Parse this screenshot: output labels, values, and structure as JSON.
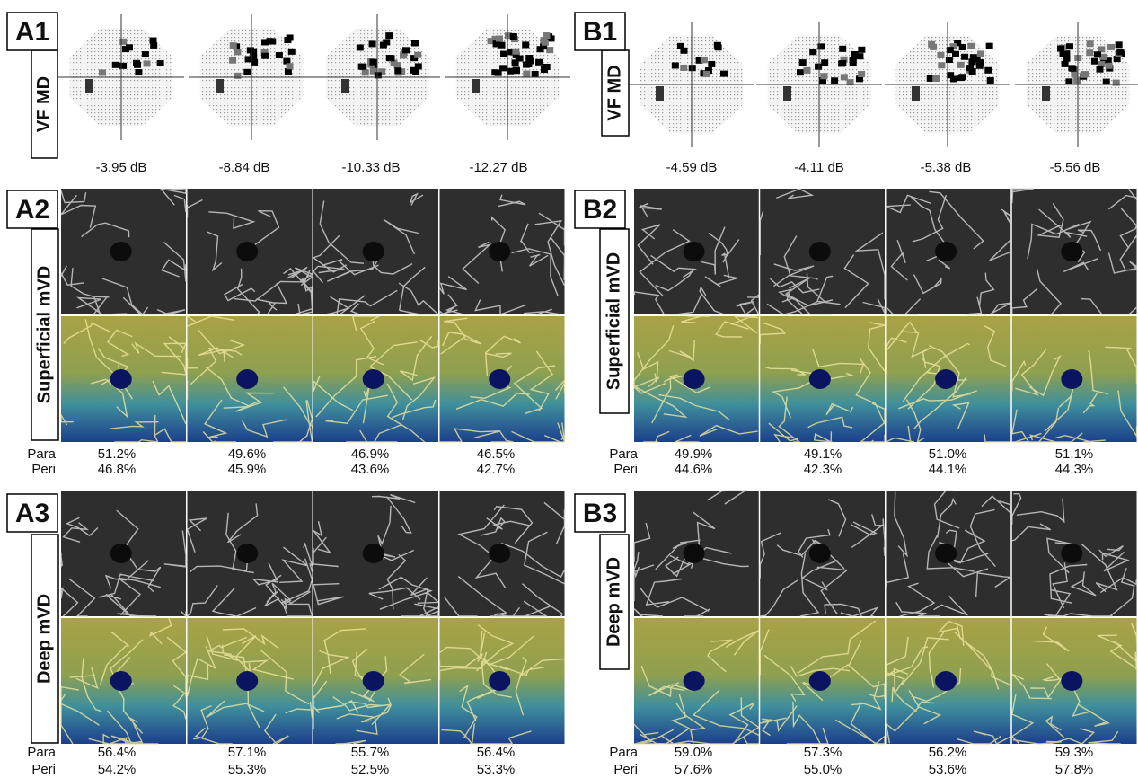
{
  "panels": [
    {
      "tag": "A1",
      "title": "VF MD",
      "values": [
        "-3.95 dB",
        "-8.84 dB",
        "-10.33 dB",
        "-12.27 dB"
      ]
    },
    {
      "tag": "A2",
      "title": "Superficial mVD",
      "rows": [
        {
          "name": "Para",
          "values": [
            "51.2%",
            "49.6%",
            "46.9%",
            "46.5%"
          ]
        },
        {
          "name": "Peri",
          "values": [
            "46.8%",
            "45.9%",
            "43.6%",
            "42.7%"
          ]
        }
      ]
    },
    {
      "tag": "A3",
      "title": "Deep mVD",
      "rows": [
        {
          "name": "Para",
          "values": [
            "56.4%",
            "57.1%",
            "55.7%",
            "56.4%"
          ]
        },
        {
          "name": "Peri",
          "values": [
            "54.2%",
            "55.3%",
            "52.5%",
            "53.3%"
          ]
        }
      ]
    },
    {
      "tag": "B1",
      "title": "VF MD",
      "values": [
        "-4.59 dB",
        "-4.11 dB",
        "-5.38 dB",
        "-5.56 dB"
      ]
    },
    {
      "tag": "B2",
      "title": "Superficial mVD",
      "rows": [
        {
          "name": "Para",
          "values": [
            "49.9%",
            "49.1%",
            "51.0%",
            "51.1%"
          ]
        },
        {
          "name": "Peri",
          "values": [
            "44.6%",
            "42.3%",
            "44.1%",
            "44.3%"
          ]
        }
      ]
    },
    {
      "tag": "B3",
      "title": "Deep mVD",
      "rows": [
        {
          "name": "Para",
          "values": [
            "59.0%",
            "57.3%",
            "56.2%",
            "59.3%"
          ]
        },
        {
          "name": "Peri",
          "values": [
            "57.6%",
            "55.0%",
            "53.6%",
            "57.8%"
          ]
        }
      ]
    }
  ]
}
